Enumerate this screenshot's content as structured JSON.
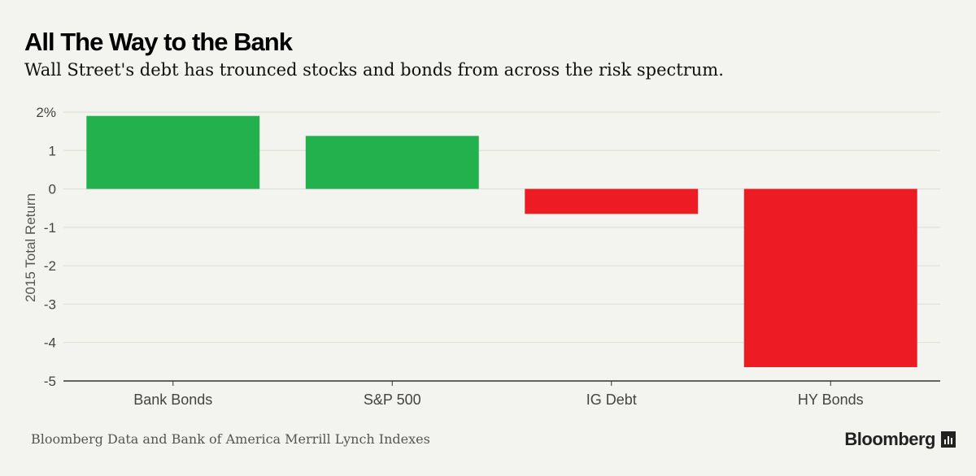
{
  "header": {
    "title": "All The Way to the Bank",
    "subtitle": "Wall Street's debt has trounced stocks and bonds from across the risk spectrum."
  },
  "footer": {
    "source": "Bloomberg Data and Bank of America Merrill Lynch Indexes",
    "brand": "Bloomberg",
    "brand_icon": "chart-bars-icon"
  },
  "colors": {
    "positive": "#23b14d",
    "negative": "#ed1c24",
    "grid": "#dcdcd6",
    "axis": "#333333",
    "text": "#444444"
  },
  "chart_data": {
    "type": "bar",
    "categories": [
      "Bank Bonds",
      "S&P 500",
      "IG Debt",
      "HY Bonds"
    ],
    "values": [
      1.9,
      1.38,
      -0.65,
      -4.64
    ],
    "ylabel": "2015 Total Return",
    "ylim": [
      -5,
      2
    ],
    "yticks": [
      2,
      1,
      0,
      -1,
      -2,
      -3,
      -4,
      -5
    ],
    "ytick_labels": [
      "2%",
      "1",
      "0",
      "-1",
      "-2",
      "-3",
      "-4",
      "-5"
    ],
    "grid": true
  }
}
